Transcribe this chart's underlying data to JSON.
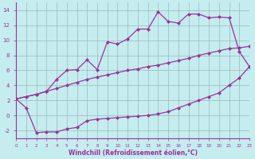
{
  "xlabel": "Windchill (Refroidissement éolien,°C)",
  "xlim": [
    0,
    23
  ],
  "ylim": [
    -3.0,
    15.0
  ],
  "yticks": [
    -2,
    0,
    2,
    4,
    6,
    8,
    10,
    12,
    14
  ],
  "xticks": [
    0,
    1,
    2,
    3,
    4,
    5,
    6,
    7,
    8,
    9,
    10,
    11,
    12,
    13,
    14,
    15,
    16,
    17,
    18,
    19,
    20,
    21,
    22,
    23
  ],
  "bg_color": "#c5ecee",
  "line_color": "#993399",
  "grid_color": "#99bbbb",
  "series1_x": [
    0,
    2,
    3,
    4,
    5,
    6,
    7,
    8,
    9,
    10,
    11,
    12,
    13,
    14,
    15,
    16,
    17,
    18,
    19,
    20,
    21,
    22,
    23
  ],
  "series1_y": [
    2.2,
    2.8,
    3.2,
    4.8,
    6.0,
    6.1,
    7.4,
    6.1,
    9.8,
    9.5,
    10.2,
    11.5,
    11.5,
    13.8,
    12.5,
    12.3,
    13.5,
    13.5,
    13.0,
    13.1,
    13.0,
    8.5,
    6.5
  ],
  "series2_x": [
    0,
    1,
    2,
    3,
    4,
    5,
    6,
    7,
    8,
    9,
    10,
    11,
    12,
    13,
    14,
    15,
    16,
    17,
    18,
    19,
    20,
    21,
    22,
    23
  ],
  "series2_y": [
    2.2,
    2.5,
    2.8,
    3.2,
    3.6,
    4.0,
    4.4,
    4.8,
    5.1,
    5.4,
    5.7,
    6.0,
    6.2,
    6.5,
    6.7,
    7.0,
    7.3,
    7.6,
    8.0,
    8.3,
    8.6,
    8.9,
    9.0,
    9.2
  ],
  "series3_x": [
    0,
    1,
    2,
    3,
    4,
    5,
    6,
    7,
    8,
    9,
    10,
    11,
    12,
    13,
    14,
    15,
    16,
    17,
    18,
    19,
    20,
    21,
    22,
    23
  ],
  "series3_y": [
    2.2,
    1.0,
    -2.3,
    -2.2,
    -2.2,
    -1.8,
    -1.6,
    -0.7,
    -0.5,
    -0.4,
    -0.3,
    -0.2,
    -0.1,
    0.0,
    0.2,
    0.5,
    1.0,
    1.5,
    2.0,
    2.5,
    3.0,
    4.0,
    5.0,
    6.5
  ]
}
